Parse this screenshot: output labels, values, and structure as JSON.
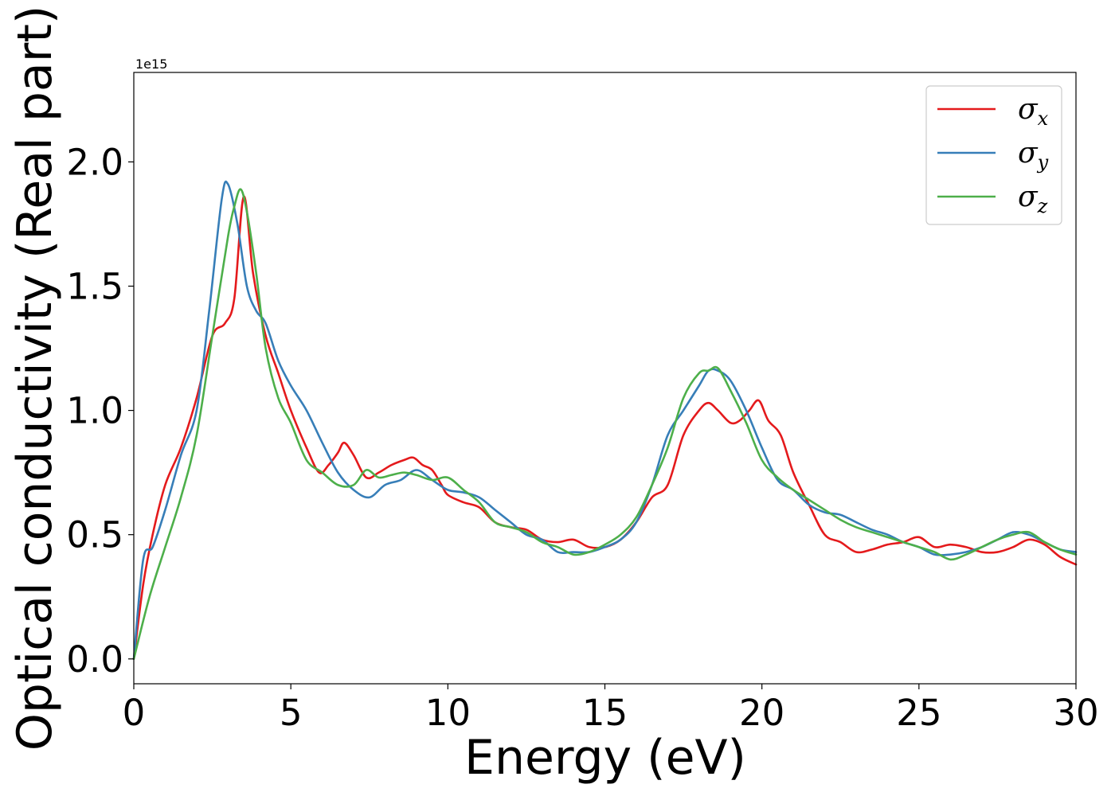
{
  "chart_data": {
    "type": "line",
    "title": "",
    "xlabel": "Energy (eV)",
    "ylabel": "Optical conductivity (Real part)",
    "y_offset_label": "1e15",
    "xlim": [
      0,
      30
    ],
    "ylim": [
      -0.1,
      2.36
    ],
    "xticks": [
      0,
      5,
      10,
      15,
      20,
      25,
      30
    ],
    "xtick_labels": [
      "0",
      "5",
      "10",
      "15",
      "20",
      "25",
      "30"
    ],
    "yticks": [
      0.0,
      0.5,
      1.0,
      1.5,
      2.0
    ],
    "ytick_labels": [
      "0.0",
      "0.5",
      "1.0",
      "1.5",
      "2.0"
    ],
    "grid": false,
    "legend_position": "top-right",
    "series": [
      {
        "name": "σx",
        "symbol": "σ",
        "subscript": "x",
        "color": "#e41a1c",
        "x": [
          0,
          0.3,
          0.6,
          1.0,
          1.5,
          2.0,
          2.5,
          2.9,
          3.2,
          3.5,
          3.8,
          4.2,
          4.6,
          5.0,
          5.5,
          5.9,
          6.2,
          6.5,
          6.7,
          7.0,
          7.4,
          7.8,
          8.2,
          8.6,
          8.9,
          9.2,
          9.5,
          9.8,
          10.0,
          10.5,
          11.0,
          11.5,
          12.0,
          12.5,
          13.0,
          13.5,
          14.0,
          14.5,
          15.0,
          15.5,
          16.0,
          16.5,
          17.0,
          17.5,
          18.0,
          18.3,
          18.6,
          19.0,
          19.3,
          19.6,
          19.9,
          20.2,
          20.6,
          21.0,
          21.5,
          22.0,
          22.5,
          23.0,
          23.5,
          24.0,
          24.5,
          25.0,
          25.5,
          26.0,
          26.5,
          27.0,
          27.5,
          28.0,
          28.5,
          29.0,
          29.5,
          30.0
        ],
        "y": [
          0.0,
          0.3,
          0.5,
          0.7,
          0.85,
          1.05,
          1.3,
          1.35,
          1.45,
          1.86,
          1.55,
          1.3,
          1.15,
          1.0,
          0.85,
          0.75,
          0.78,
          0.83,
          0.87,
          0.82,
          0.73,
          0.75,
          0.78,
          0.8,
          0.81,
          0.78,
          0.76,
          0.7,
          0.66,
          0.63,
          0.61,
          0.55,
          0.53,
          0.52,
          0.48,
          0.47,
          0.48,
          0.45,
          0.45,
          0.48,
          0.55,
          0.65,
          0.7,
          0.9,
          1.0,
          1.03,
          1.0,
          0.95,
          0.96,
          1.0,
          1.04,
          0.96,
          0.9,
          0.75,
          0.62,
          0.5,
          0.47,
          0.43,
          0.44,
          0.46,
          0.47,
          0.49,
          0.45,
          0.46,
          0.45,
          0.43,
          0.43,
          0.45,
          0.48,
          0.46,
          0.41,
          0.38
        ]
      },
      {
        "name": "σy",
        "symbol": "σ",
        "subscript": "y",
        "color": "#377eb8",
        "x": [
          0,
          0.3,
          0.6,
          1.0,
          1.5,
          2.0,
          2.4,
          2.8,
          3.0,
          3.3,
          3.6,
          3.9,
          4.2,
          4.6,
          5.0,
          5.5,
          6.0,
          6.5,
          7.0,
          7.5,
          8.0,
          8.5,
          9.0,
          9.5,
          10.0,
          10.5,
          11.0,
          11.5,
          12.0,
          12.5,
          13.0,
          13.5,
          14.0,
          14.5,
          15.0,
          15.5,
          16.0,
          16.5,
          17.0,
          17.5,
          18.0,
          18.3,
          18.6,
          19.0,
          19.5,
          20.0,
          20.5,
          21.0,
          21.5,
          22.0,
          22.5,
          23.0,
          23.5,
          24.0,
          24.5,
          25.0,
          25.5,
          26.0,
          26.5,
          27.0,
          27.5,
          28.0,
          28.5,
          29.0,
          29.5,
          30.0
        ],
        "y": [
          0.0,
          0.4,
          0.45,
          0.6,
          0.82,
          1.0,
          1.4,
          1.85,
          1.91,
          1.75,
          1.5,
          1.4,
          1.35,
          1.2,
          1.1,
          1.0,
          0.87,
          0.75,
          0.68,
          0.65,
          0.7,
          0.72,
          0.76,
          0.72,
          0.68,
          0.67,
          0.65,
          0.6,
          0.55,
          0.5,
          0.48,
          0.43,
          0.43,
          0.43,
          0.45,
          0.48,
          0.55,
          0.7,
          0.9,
          1.0,
          1.1,
          1.16,
          1.16,
          1.12,
          1.0,
          0.85,
          0.72,
          0.68,
          0.62,
          0.59,
          0.58,
          0.55,
          0.52,
          0.5,
          0.47,
          0.45,
          0.42,
          0.42,
          0.43,
          0.45,
          0.48,
          0.51,
          0.5,
          0.47,
          0.44,
          0.43
        ]
      },
      {
        "name": "σz",
        "symbol": "σ",
        "subscript": "z",
        "color": "#4daf4a",
        "x": [
          0,
          0.5,
          1.0,
          1.5,
          2.0,
          2.5,
          3.0,
          3.2,
          3.4,
          3.6,
          3.9,
          4.2,
          4.6,
          5.0,
          5.5,
          6.0,
          6.5,
          7.0,
          7.4,
          7.8,
          8.2,
          8.6,
          9.0,
          9.5,
          10.0,
          10.5,
          11.0,
          11.5,
          12.0,
          12.5,
          13.0,
          13.5,
          14.0,
          14.5,
          15.0,
          15.5,
          16.0,
          16.5,
          17.0,
          17.5,
          18.0,
          18.3,
          18.6,
          19.0,
          19.5,
          20.0,
          20.5,
          21.0,
          21.5,
          22.0,
          22.5,
          23.0,
          23.5,
          24.0,
          24.5,
          25.0,
          25.5,
          26.0,
          26.5,
          27.0,
          27.5,
          28.0,
          28.5,
          29.0,
          29.5,
          30.0
        ],
        "y": [
          0.0,
          0.25,
          0.45,
          0.65,
          0.9,
          1.3,
          1.7,
          1.82,
          1.89,
          1.8,
          1.55,
          1.25,
          1.05,
          0.95,
          0.8,
          0.75,
          0.7,
          0.7,
          0.76,
          0.73,
          0.74,
          0.75,
          0.74,
          0.72,
          0.73,
          0.68,
          0.63,
          0.55,
          0.53,
          0.51,
          0.47,
          0.45,
          0.42,
          0.43,
          0.46,
          0.5,
          0.57,
          0.7,
          0.85,
          1.05,
          1.15,
          1.16,
          1.17,
          1.08,
          0.95,
          0.8,
          0.73,
          0.68,
          0.64,
          0.6,
          0.56,
          0.53,
          0.51,
          0.49,
          0.47,
          0.45,
          0.43,
          0.4,
          0.42,
          0.45,
          0.48,
          0.5,
          0.51,
          0.47,
          0.44,
          0.42
        ]
      }
    ]
  }
}
